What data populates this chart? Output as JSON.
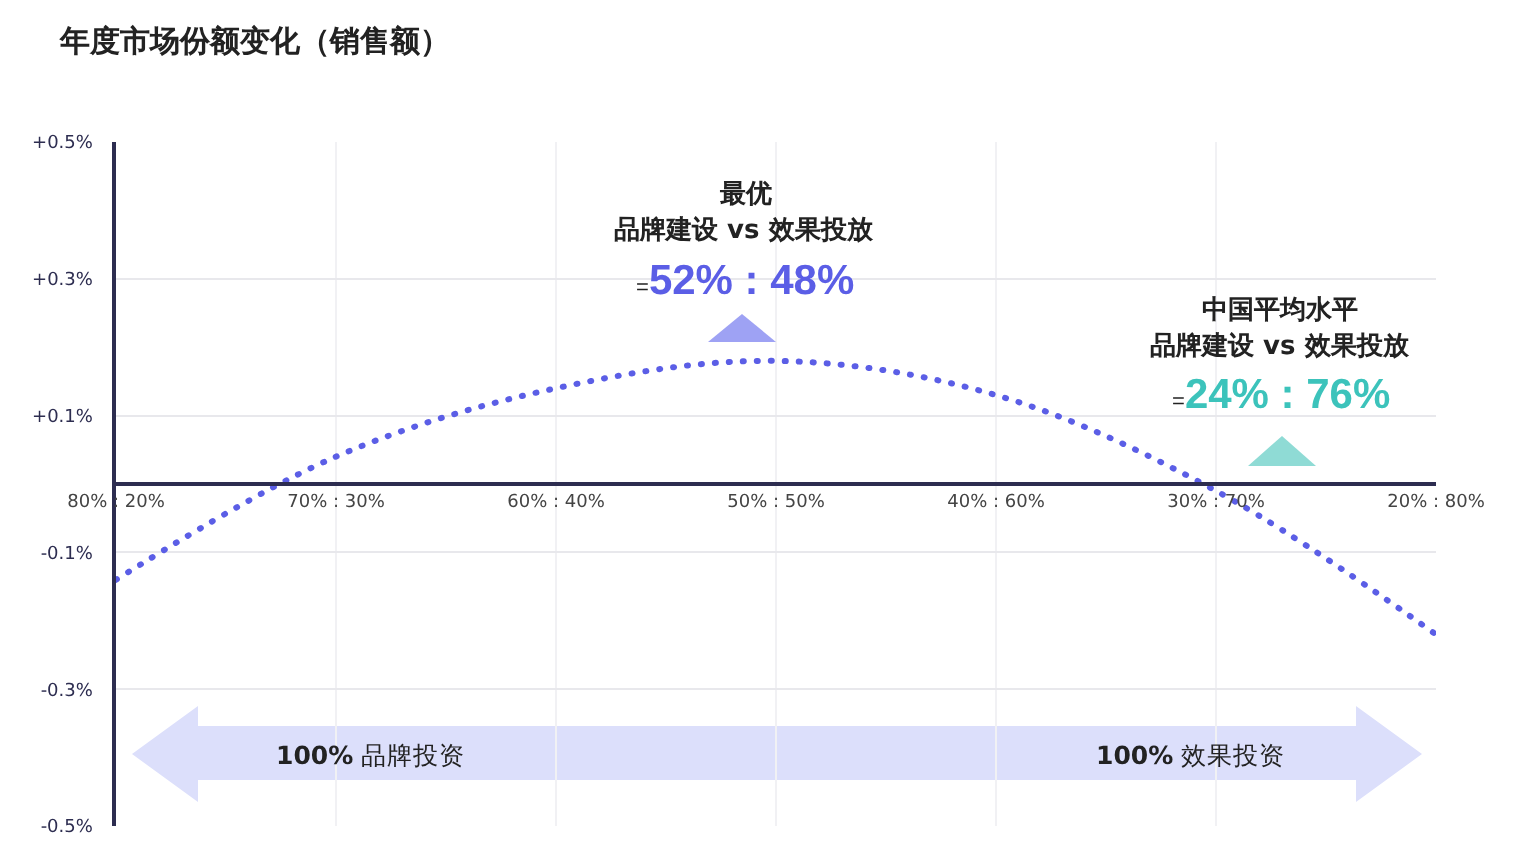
{
  "chart_data": {
    "type": "line",
    "title": "年度市场份额变化（销售额）",
    "categories": [
      "80% : 20%",
      "70% : 30%",
      "60% : 40%",
      "50% : 50%",
      "40% : 60%",
      "30% : 70%",
      "20% : 80%"
    ],
    "series": [
      {
        "color": "#5b5ee6",
        "values": [
          -0.14,
          0.04,
          0.14,
          0.18,
          0.13,
          -0.01,
          -0.22
        ]
      }
    ],
    "line_style": "dotted",
    "ylim": [
      -0.5,
      0.5
    ],
    "yticks": [
      {
        "value": -0.5,
        "label": "-0.5%"
      },
      {
        "value": -0.3,
        "label": "-0.3%"
      },
      {
        "value": -0.1,
        "label": "-0.1%"
      },
      {
        "value": 0.1,
        "label": "+0.1%"
      },
      {
        "value": 0.3,
        "label": "+0.3%"
      },
      {
        "value": 0.5,
        "label": "+0.5%"
      }
    ],
    "grid": true,
    "annotations": [
      "最优",
      "品牌建设 vs 效果投放",
      "=52% : 48%",
      "中国平均水平",
      "品牌建设 vs 效果投放",
      "=24% : 76%",
      "100% 品牌投资",
      "100% 效果投资"
    ]
  }
}
